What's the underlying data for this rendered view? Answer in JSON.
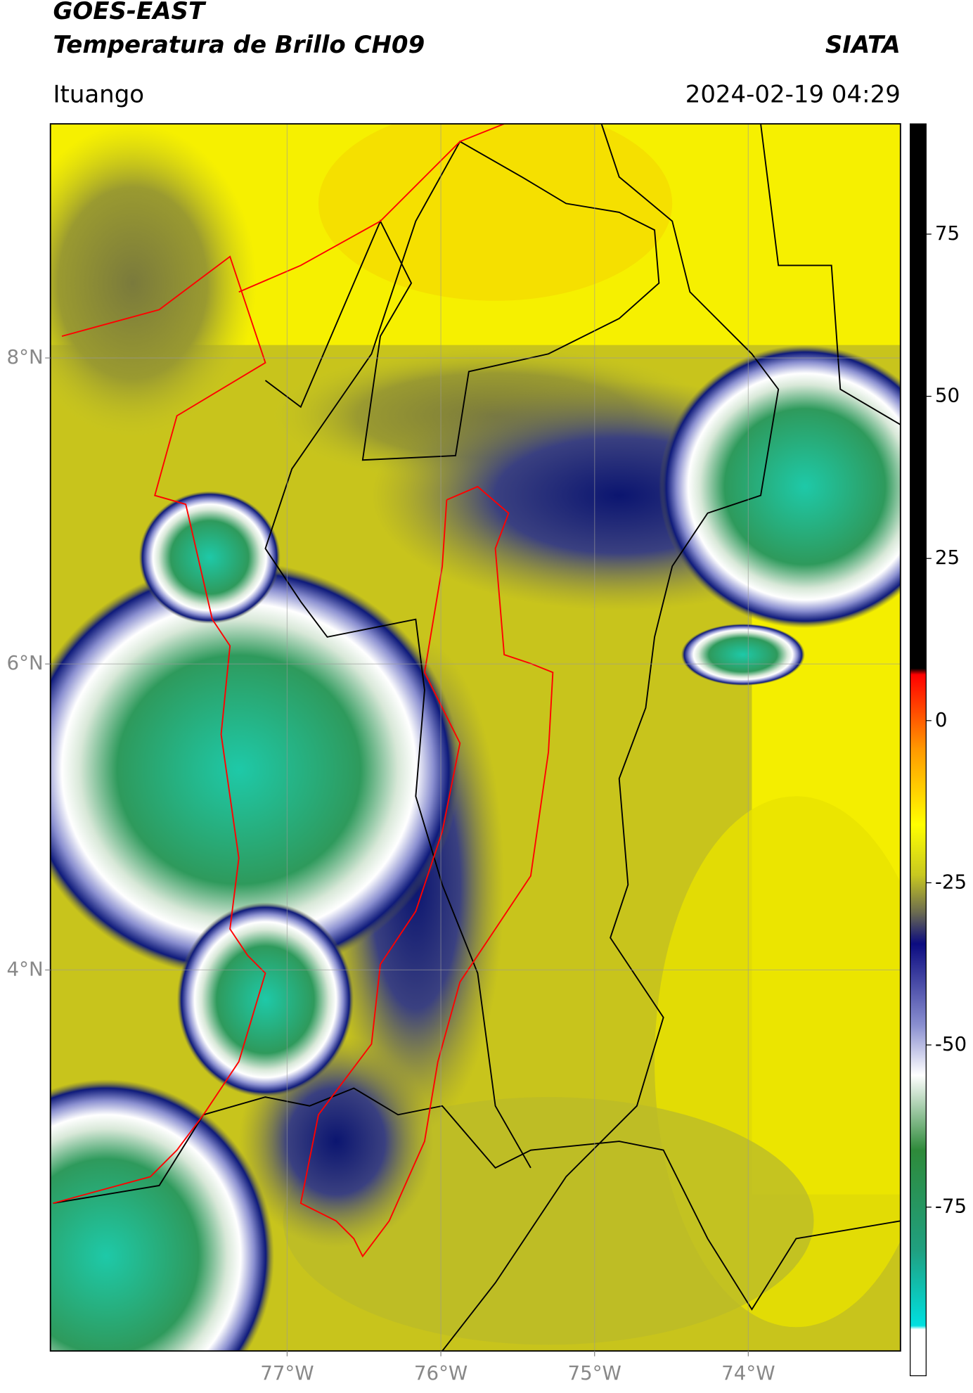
{
  "header": {
    "title": "GOES-EAST",
    "subtitle": "Temperatura de Brillo CH09",
    "brand": "SIATA",
    "location": "Ituango",
    "datetime": "2024-02-19 04:29"
  },
  "map": {
    "xlim": [
      -78.54,
      -73.01
    ],
    "ylim": [
      1.51,
      9.53
    ],
    "xticks": [
      {
        "value": -77,
        "label": "77°W"
      },
      {
        "value": -76,
        "label": "76°W"
      },
      {
        "value": -75,
        "label": "75°W"
      },
      {
        "value": -74,
        "label": "74°W"
      }
    ],
    "yticks": [
      {
        "value": 8,
        "label": "8°N"
      },
      {
        "value": 6,
        "label": "6°N"
      },
      {
        "value": 4,
        "label": "4°N"
      }
    ],
    "grid": true
  },
  "colorbar": {
    "lim": [
      -101,
      92
    ],
    "ticks": [
      75,
      50,
      25,
      0,
      -25,
      -50,
      -75
    ]
  }
}
